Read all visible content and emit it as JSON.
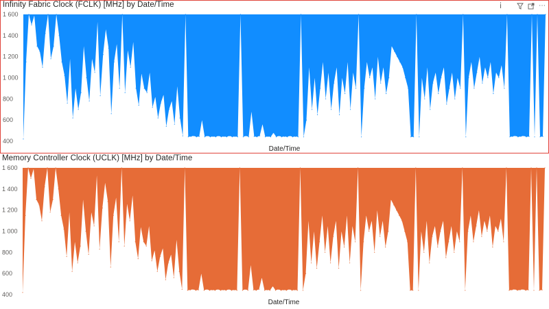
{
  "charts": [
    {
      "title": "Infinity Fabric Clock (FCLK) [MHz] by Date/Time",
      "toolbar": [
        "info-icon",
        "filter-icon",
        "focus-mode-icon",
        "more-options-icon"
      ]
    },
    {
      "title": "Memory Controller Clock (UCLK) [MHz] by Date/Time",
      "toolbar": []
    }
  ],
  "chart_data": [
    {
      "type": "area",
      "title": "Infinity Fabric Clock (FCLK) [MHz] by Date/Time",
      "xlabel": "Date/Time",
      "ylabel": "",
      "ylim": [
        400,
        1600
      ],
      "yticks": [
        "1 600",
        "1 400",
        "1 200",
        "1 000",
        "800",
        "600",
        "400"
      ],
      "color": "#118dff",
      "grid": false,
      "series": [
        {
          "values": [
            420,
            1150,
            1600,
            1500,
            1590,
            1300,
            1250,
            1100,
            1420,
            1600,
            1180,
            1300,
            1600,
            1400,
            1150,
            1020,
            760,
            1180,
            620,
            900,
            700,
            860,
            1300,
            1000,
            780,
            1180,
            1050,
            1530,
            830,
            1220,
            1460,
            1280,
            660,
            1150,
            1320,
            900,
            1600,
            860,
            1260,
            1100,
            1340,
            900,
            740,
            1040,
            900,
            860,
            1050,
            720,
            820,
            620,
            760,
            840,
            540,
            700,
            780,
            560,
            920,
            620,
            450,
            1600,
            440,
            445,
            450,
            440,
            445,
            600,
            440,
            450,
            440,
            445,
            440,
            450,
            440,
            445,
            440,
            450,
            440,
            445,
            440,
            1600,
            440,
            450,
            440,
            680,
            445,
            440,
            450,
            560,
            440,
            445,
            440,
            480,
            440,
            450,
            440,
            445,
            440,
            450,
            440,
            445,
            440,
            1600,
            440,
            600,
            1100,
            700,
            1000,
            650,
            900,
            1150,
            800,
            1050,
            700,
            950,
            1100,
            650,
            1000,
            850,
            1150,
            700,
            1050,
            900,
            1600,
            440,
            900,
            1150,
            1000,
            1100,
            800,
            1200,
            950,
            1100,
            850,
            1000,
            1300,
            1250,
            1200,
            1150,
            1100,
            1000,
            900,
            440,
            440,
            1600,
            440,
            1000,
            800,
            1100,
            700,
            950,
            1050,
            850,
            1000,
            1100,
            750,
            900,
            1050,
            800,
            1000,
            900,
            1600,
            440,
            1000,
            1150,
            900,
            1050,
            1200,
            950,
            1100,
            1000,
            1150,
            850,
            1050,
            1000,
            1120,
            900,
            1600,
            440,
            445,
            450,
            440,
            445,
            450,
            440,
            445,
            1600,
            440,
            1600,
            440,
            445,
            1600
          ]
        }
      ]
    },
    {
      "type": "area",
      "title": "Memory Controller Clock (UCLK) [MHz] by Date/Time",
      "xlabel": "Date/Time",
      "ylabel": "",
      "ylim": [
        400,
        1600
      ],
      "yticks": [
        "1 600",
        "1 400",
        "1 200",
        "1 000",
        "800",
        "600",
        "400"
      ],
      "color": "#e66c37",
      "grid": false,
      "series": [
        {
          "values": [
            420,
            1150,
            1600,
            1500,
            1590,
            1300,
            1250,
            1100,
            1420,
            1600,
            1180,
            1300,
            1600,
            1400,
            1150,
            1020,
            760,
            1180,
            620,
            900,
            700,
            860,
            1300,
            1000,
            780,
            1180,
            1050,
            1530,
            830,
            1220,
            1460,
            1280,
            660,
            1150,
            1320,
            900,
            1600,
            860,
            1260,
            1100,
            1340,
            900,
            740,
            1040,
            900,
            860,
            1050,
            720,
            820,
            620,
            760,
            840,
            540,
            700,
            780,
            560,
            920,
            620,
            450,
            1600,
            440,
            445,
            450,
            440,
            445,
            600,
            440,
            450,
            440,
            445,
            440,
            450,
            440,
            445,
            440,
            450,
            440,
            445,
            440,
            1600,
            440,
            450,
            440,
            680,
            445,
            440,
            450,
            560,
            440,
            445,
            440,
            480,
            440,
            450,
            440,
            445,
            440,
            450,
            440,
            445,
            440,
            1600,
            440,
            600,
            1100,
            700,
            1000,
            650,
            900,
            1150,
            800,
            1050,
            700,
            950,
            1100,
            650,
            1000,
            850,
            1150,
            700,
            1050,
            900,
            1600,
            440,
            900,
            1150,
            1000,
            1100,
            800,
            1200,
            950,
            1100,
            850,
            1000,
            1300,
            1250,
            1200,
            1150,
            1100,
            1000,
            900,
            440,
            440,
            1600,
            440,
            1000,
            800,
            1100,
            700,
            950,
            1050,
            850,
            1000,
            1100,
            750,
            900,
            1050,
            800,
            1000,
            900,
            1600,
            440,
            1000,
            1150,
            900,
            1050,
            1200,
            950,
            1100,
            1000,
            1150,
            850,
            1050,
            1000,
            1120,
            900,
            1600,
            440,
            445,
            450,
            440,
            445,
            450,
            440,
            445,
            1600,
            440,
            1600,
            440,
            445,
            1600
          ]
        }
      ]
    }
  ]
}
